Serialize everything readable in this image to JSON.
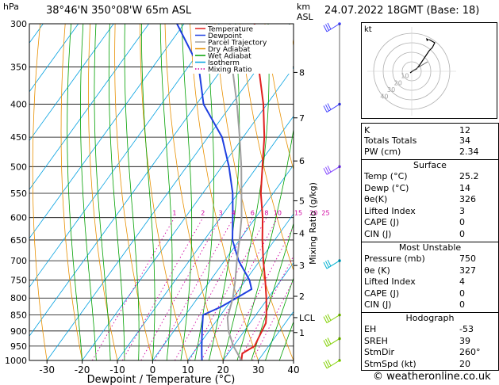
{
  "header": {
    "hpa_label": "hPa",
    "location": "38°46'N 350°08'W 65m ASL",
    "km_label": "km",
    "asl_label": "ASL",
    "datetime": "24.07.2022 18GMT (Base: 18)"
  },
  "chart_data": {
    "type": "line",
    "title": "",
    "xlabel": "Dewpoint / Temperature (°C)",
    "ylabel": "hPa",
    "x_ticks": [
      -30,
      -20,
      -10,
      0,
      10,
      20,
      30,
      40
    ],
    "xlim": [
      -35,
      40
    ],
    "pressure_levels": [
      300,
      350,
      400,
      450,
      500,
      550,
      600,
      650,
      700,
      750,
      800,
      850,
      900,
      950,
      1000
    ],
    "ylim": [
      1000,
      300
    ],
    "y_scale": "log",
    "km_ticks": [
      {
        "label": "8",
        "p": 357
      },
      {
        "label": "7",
        "p": 420
      },
      {
        "label": "6",
        "p": 490
      },
      {
        "label": "5",
        "p": 565
      },
      {
        "label": "4",
        "p": 635
      },
      {
        "label": "3",
        "p": 712
      },
      {
        "label": "2",
        "p": 795
      },
      {
        "label": "LCL",
        "p": 858
      },
      {
        "label": "1",
        "p": 905
      }
    ],
    "mixing_ratio_label": "Mixing Ratio (g/kg)",
    "mixing_ratio_labels": [
      "1",
      "2",
      "3",
      "4",
      "6",
      "8",
      "10",
      "15",
      "20",
      "25"
    ],
    "mixing_ratio_values": [
      1,
      2,
      3,
      4,
      6,
      8,
      10,
      15,
      20,
      25
    ],
    "legend": {
      "position": "top-right",
      "items": [
        {
          "label": "Temperature",
          "color": "#e0201e",
          "style": "solid"
        },
        {
          "label": "Dewpoint",
          "color": "#1f3fe0",
          "style": "solid"
        },
        {
          "label": "Parcel Trajectory",
          "color": "#a0a0a0",
          "style": "solid"
        },
        {
          "label": "Dry Adiabat",
          "color": "#e89000",
          "style": "solid"
        },
        {
          "label": "Wet Adiabat",
          "color": "#00a000",
          "style": "solid"
        },
        {
          "label": "Isotherm",
          "color": "#00a0e0",
          "style": "solid"
        },
        {
          "label": "Mixing Ratio",
          "color": "#d000a0",
          "style": "dotted"
        }
      ]
    },
    "series": [
      {
        "name": "Temperature",
        "color": "#e0201e",
        "points": [
          [
            1000,
            25.2
          ],
          [
            975,
            24
          ],
          [
            950,
            26
          ],
          [
            925,
            25.5
          ],
          [
            900,
            25
          ],
          [
            875,
            24.5
          ],
          [
            850,
            23
          ],
          [
            800,
            19.5
          ],
          [
            750,
            15.5
          ],
          [
            700,
            11
          ],
          [
            650,
            6.5
          ],
          [
            600,
            2
          ],
          [
            550,
            -3.5
          ],
          [
            500,
            -8.5
          ],
          [
            450,
            -14
          ],
          [
            400,
            -21
          ],
          [
            350,
            -30
          ],
          [
            300,
            -40
          ]
        ]
      },
      {
        "name": "Dewpoint",
        "color": "#1f3fe0",
        "points": [
          [
            1000,
            14
          ],
          [
            975,
            12.5
          ],
          [
            950,
            11
          ],
          [
            900,
            8
          ],
          [
            850,
            5
          ],
          [
            825,
            8.5
          ],
          [
            800,
            11
          ],
          [
            775,
            13.5
          ],
          [
            750,
            11
          ],
          [
            700,
            4
          ],
          [
            650,
            -2
          ],
          [
            600,
            -6.5
          ],
          [
            550,
            -11.5
          ],
          [
            500,
            -18
          ],
          [
            450,
            -26
          ],
          [
            400,
            -38
          ],
          [
            350,
            -47
          ],
          [
            300,
            -62
          ]
        ]
      },
      {
        "name": "Parcel Trajectory",
        "color": "#a0a0a0",
        "points": [
          [
            1000,
            25.2
          ],
          [
            950,
            20
          ],
          [
            900,
            15.5
          ],
          [
            858,
            12.5
          ],
          [
            800,
            10
          ],
          [
            750,
            7
          ],
          [
            700,
            3.5
          ],
          [
            650,
            0
          ],
          [
            600,
            -4
          ],
          [
            550,
            -9
          ],
          [
            500,
            -14.5
          ],
          [
            450,
            -21
          ],
          [
            400,
            -28.5
          ],
          [
            350,
            -37.5
          ],
          [
            300,
            -47
          ]
        ]
      }
    ]
  },
  "hodograph": {
    "label": "kt",
    "ring_labels": [
      "10",
      "20",
      "30",
      "40"
    ],
    "trace_color": "#000000",
    "storm_motion_color": "#606060"
  },
  "wind_barbs": {
    "levels": [
      300,
      400,
      500,
      700,
      850,
      925,
      1000
    ],
    "colors": {
      "upper": "#4040ff",
      "mid": "#8040ff",
      "low": "#00b0d0",
      "surface": "#80d000"
    }
  },
  "indices": {
    "rows": [
      {
        "label": "K",
        "value": "12"
      },
      {
        "label": "Totals Totals",
        "value": "34"
      },
      {
        "label": "PW (cm)",
        "value": "2.34"
      }
    ]
  },
  "surface": {
    "title": "Surface",
    "rows": [
      {
        "label": "Temp (°C)",
        "value": "25.2"
      },
      {
        "label": "Dewp (°C)",
        "value": "14"
      },
      {
        "label": "θe(K)",
        "value": "326"
      },
      {
        "label": "Lifted Index",
        "value": "3"
      },
      {
        "label": "CAPE (J)",
        "value": "0"
      },
      {
        "label": "CIN (J)",
        "value": "0"
      }
    ]
  },
  "most_unstable": {
    "title": "Most Unstable",
    "rows": [
      {
        "label": "Pressure (mb)",
        "value": "750"
      },
      {
        "label": "θe (K)",
        "value": "327"
      },
      {
        "label": "Lifted Index",
        "value": "4"
      },
      {
        "label": "CAPE (J)",
        "value": "0"
      },
      {
        "label": "CIN (J)",
        "value": "0"
      }
    ]
  },
  "hodograph_table": {
    "title": "Hodograph",
    "rows": [
      {
        "label": "EH",
        "value": "-53"
      },
      {
        "label": "SREH",
        "value": "39"
      },
      {
        "label": "StmDir",
        "value": "260°"
      },
      {
        "label": "StmSpd (kt)",
        "value": "20"
      }
    ]
  },
  "copyright": "© weatheronline.co.uk"
}
